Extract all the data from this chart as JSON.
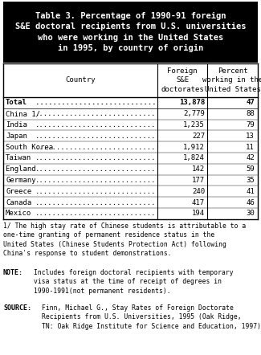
{
  "title_lines": [
    "Table 3. Percentage of 1990-91 foreign",
    "S&E doctoral recipients from U.S. universities",
    "who were working in the United States",
    "in 1995, by country of origin"
  ],
  "title_bg": "#000000",
  "title_color": "#ffffff",
  "col_header_country": "Country",
  "col_header_doc": "Foreign\nS&E\ndoctorates",
  "col_header_pct": "Percent\nworking in the\nUnited States",
  "rows": [
    {
      "country": "Total",
      "dots": true,
      "doc": "13,878",
      "pct": "47",
      "bold": true
    },
    {
      "country": "China 1/",
      "dots": true,
      "doc": "2,779",
      "pct": "88",
      "bold": false
    },
    {
      "country": "India",
      "dots": true,
      "doc": "1,235",
      "pct": "79",
      "bold": false
    },
    {
      "country": "Japan",
      "dots": true,
      "doc": "227",
      "pct": "13",
      "bold": false
    },
    {
      "country": "South Korea",
      "dots": true,
      "doc": "1,912",
      "pct": "11",
      "bold": false
    },
    {
      "country": "Taiwan",
      "dots": true,
      "doc": "1,824",
      "pct": "42",
      "bold": false
    },
    {
      "country": "England ",
      "dots": true,
      "doc": "142",
      "pct": "59",
      "bold": false
    },
    {
      "country": "Germany",
      "dots": true,
      "doc": "177",
      "pct": "35",
      "bold": false
    },
    {
      "country": "Greece",
      "dots": true,
      "doc": "240",
      "pct": "41",
      "bold": false
    },
    {
      "country": "Canada",
      "dots": true,
      "doc": "417",
      "pct": "46",
      "bold": false
    },
    {
      "country": "Mexico",
      "dots": true,
      "doc": "194",
      "pct": "30",
      "bold": false
    }
  ],
  "footnote1": "1/ The high stay rate of Chinese students is attributable to a\none-time granting of permanent residence status in the\nUnited States (Chinese Students Protection Act) following\nChina's response to student demonstrations.",
  "note_label": "NOTE",
  "note_text": "Includes foreign doctoral recipients with temporary\nvisa status at the time of receipt of degrees in\n1990-1991(not permanent residents).",
  "source_label": "SOURCE",
  "source_text": "Finn, Michael G., Stay Rates of Foreign Doctorate\nRecipients from U.S. Universities, 1995 (Oak Ridge,\nTN: Oak Ridge Institute for Science and Education, 1997).",
  "bg_color": "#ffffff",
  "line_color": "#000000",
  "font_size_title": 7.5,
  "font_size_header": 6.5,
  "font_size_data": 6.5,
  "font_size_footnote": 5.8,
  "font_size_note": 6.0
}
